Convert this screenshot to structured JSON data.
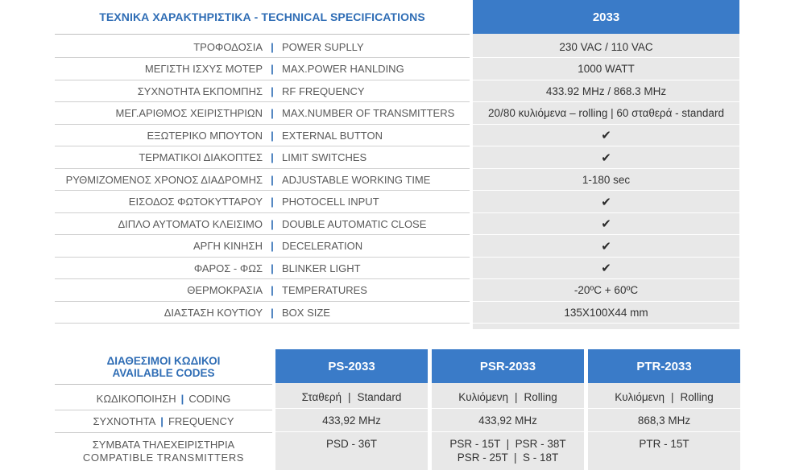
{
  "specs": {
    "title": "ΤΕΧΝΙΚΑ ΧΑΡΑΚΤΗΡΙΣΤΙΚΑ - TECHNICAL SPECIFICATIONS",
    "model": "2033",
    "separator": "|",
    "rows": [
      {
        "gr": "ΤΡΟΦΟΔΟΣΙΑ",
        "en": "POWER SUPLLY",
        "value": "230 VAC / 110 VAC"
      },
      {
        "gr": "ΜΕΓΙΣΤΗ ΙΣΧΥΣ ΜΟΤΕΡ",
        "en": "MAX.POWER HANLDING",
        "value": "1000 WATT"
      },
      {
        "gr": "ΣΥΧΝΟΤΗΤΑ ΕΚΠΟΜΠΗΣ",
        "en": "RF FREQUENCY",
        "value": "433.92 MHz / 868.3 MHz"
      },
      {
        "gr": "ΜΕΓ.ΑΡΙΘΜΟΣ ΧΕΙΡΙΣΤΗΡΙΩΝ",
        "en": "MAX.NUMBER OF TRANSMITTERS",
        "value": "20/80 κυλιόμενα – rolling | 60 σταθερά - standard"
      },
      {
        "gr": "ΕΞΩΤΕΡΙΚΟ ΜΠΟΥΤΟΝ",
        "en": "EXTERNAL BUTTON",
        "value": "✔"
      },
      {
        "gr": "ΤΕΡΜΑΤΙΚΟΙ ΔΙΑΚΟΠΤΕΣ",
        "en": "LIMIT SWITCHES",
        "value": "✔"
      },
      {
        "gr": "ΡΥΘΜΙΖΟΜΕΝΟΣ ΧΡΟΝΟΣ ΔΙΑΔΡΟΜΗΣ",
        "en": "ADJUSTABLE WORKING TIME",
        "value": "1-180 sec"
      },
      {
        "gr": "ΕΙΣΟΔΟΣ ΦΩΤΟΚΥΤΤΑΡΟΥ",
        "en": "PHOTOCELL INPUT",
        "value": "✔"
      },
      {
        "gr": "ΔΙΠΛΟ ΑΥΤΟΜΑΤΟ ΚΛΕΙΣΙΜΟ",
        "en": "DOUBLE AUTOMATIC CLOSE",
        "value": "✔"
      },
      {
        "gr": "ΑΡΓΗ ΚΙΝΗΣΗ",
        "en": "DECELERATION",
        "value": "✔"
      },
      {
        "gr": "ΦΑΡΟΣ - ΦΩΣ",
        "en": "BLINKER LIGHT",
        "value": "✔"
      },
      {
        "gr": "ΘΕΡΜΟΚΡΑΣΙΑ",
        "en": "TEMPERATURES",
        "value": "-20ºC + 60ºC"
      },
      {
        "gr": "ΔΙΑΣΤΑΣΗ ΚΟΥΤΙΟΥ",
        "en": "BOX SIZE",
        "value": "135X100X44 mm"
      }
    ]
  },
  "codes": {
    "title_gr": "ΔΙΑΘΕΣΙΜΟΙ ΚΩΔΙΚΟΙ",
    "title_en": "AVAILABLE CODES",
    "columns": [
      "PS-2033",
      "PSR-2033",
      "PTR-2033"
    ],
    "coding": {
      "gr": "ΚΩΔΙΚΟΠΟΙΗΣΗ",
      "en": "CODING",
      "cells": [
        {
          "gr": "Σταθερή",
          "en": "Standard"
        },
        {
          "gr": "Κυλιόμενη",
          "en": "Rolling"
        },
        {
          "gr": "Κυλιόμενη",
          "en": "Rolling"
        }
      ]
    },
    "frequency": {
      "gr": "ΣΥΧΝΟΤΗΤΑ",
      "en": "FREQUENCY",
      "cells": [
        "433,92 MHz",
        "433,92 MHz",
        "868,3 MHz"
      ]
    },
    "transmitters": {
      "gr": "ΣΥΜΒΑΤΑ ΤΗΛΕΧΕΙΡΙΣΤΗΡΙΑ",
      "en": "COMPATIBLE TRANSMITTERS",
      "cells": [
        [
          "PSD - 36T"
        ],
        [
          "PSR - 15T  |  PSR - 38T",
          "PSR - 25T  |  S - 18T"
        ],
        [
          "PTR - 15T"
        ]
      ]
    }
  },
  "colors": {
    "accent": "#3a7bc8",
    "title_blue": "#2f6db5",
    "cell_bg": "#e8e8e8"
  }
}
